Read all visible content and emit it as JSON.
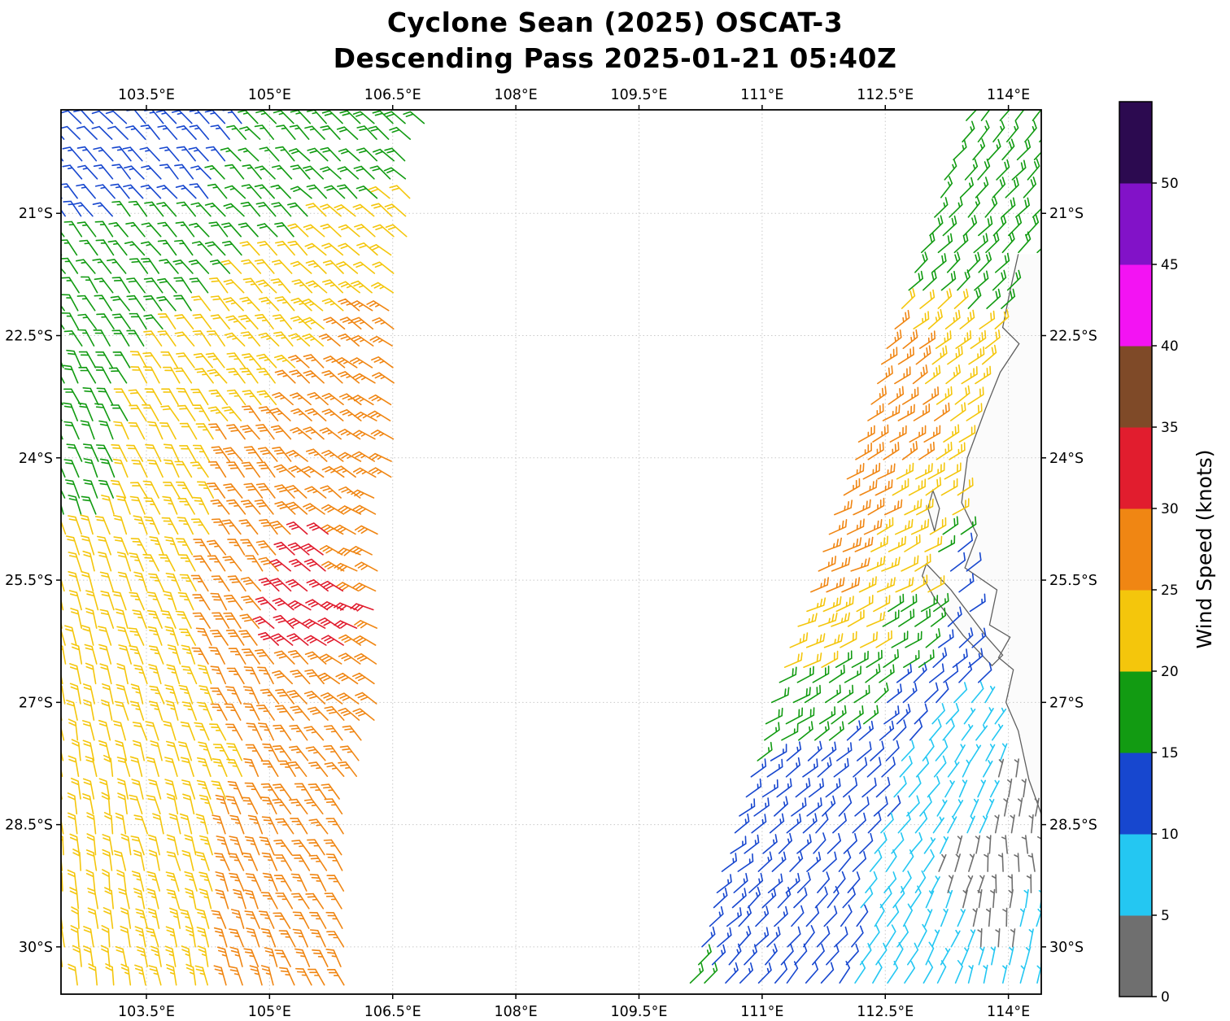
{
  "title": {
    "line1": "Cyclone Sean (2025) OSCAT-3",
    "line2": "Descending Pass 2025-01-21 05:40Z"
  },
  "chart_data": {
    "type": "wind_barb_map",
    "title": "Cyclone Sean (2025) OSCAT-3 — Descending Pass 2025-01-21 05:40Z",
    "instrument": "OSCAT-3",
    "pass_type": "Descending",
    "datetime_label": "2025-01-21 05:40Z",
    "lon_range": [
      102.46,
      114.4
    ],
    "lat_range": [
      19.73,
      30.58
    ],
    "grid": "dashed",
    "x_ticks": [
      103.5,
      105,
      106.5,
      108,
      109.5,
      111,
      112.5,
      114
    ],
    "x_tick_labels": [
      "103.5°E",
      "105°E",
      "106.5°E",
      "108°E",
      "109.5°E",
      "111°E",
      "112.5°E",
      "114°E"
    ],
    "y_ticks": [
      21,
      22.5,
      24,
      25.5,
      27,
      28.5,
      30
    ],
    "y_tick_labels": [
      "21°S",
      "22.5°S",
      "24°S",
      "25.5°S",
      "27°S",
      "28.5°S",
      "30°S"
    ],
    "colorbar": {
      "label": "Wind Speed (knots)",
      "levels": [
        0,
        5,
        10,
        15,
        20,
        25,
        30,
        35,
        40,
        45,
        50,
        55
      ],
      "tick_labels": [
        "0",
        "5",
        "10",
        "15",
        "20",
        "25",
        "30",
        "35",
        "40",
        "45",
        "50"
      ],
      "colors": [
        "#6f6f6f",
        "#24c7f2",
        "#1747cf",
        "#129b12",
        "#f4c60c",
        "#f08613",
        "#e11d2e",
        "#7f4a28",
        "#f313f3",
        "#8212c8",
        "#2c0a50"
      ]
    },
    "swaths": [
      {
        "name": "left-swath",
        "col_spacing_deg": 0.2,
        "row_spacing_deg": 0.23,
        "left_edge": [
          [
            19.8,
            102.38
          ],
          [
            30.6,
            102.38
          ]
        ],
        "right_edge": [
          [
            19.8,
            106.92
          ],
          [
            21.0,
            106.72
          ],
          [
            22.5,
            106.6
          ],
          [
            24.0,
            106.5
          ],
          [
            25.5,
            106.4
          ],
          [
            26.6,
            106.35
          ],
          [
            27.2,
            106.3
          ],
          [
            28.2,
            106.05
          ],
          [
            30.6,
            105.98
          ]
        ]
      },
      {
        "name": "right-swath",
        "col_spacing_deg": 0.2,
        "row_spacing_deg": 0.23,
        "left_edge": [
          [
            19.8,
            113.42
          ],
          [
            21.0,
            113.02
          ],
          [
            22.5,
            112.5
          ],
          [
            24.0,
            112.02
          ],
          [
            25.5,
            111.55
          ],
          [
            27.0,
            111.05
          ],
          [
            28.5,
            110.6
          ],
          [
            30.0,
            110.18
          ],
          [
            30.6,
            109.98
          ]
        ],
        "right_edge": [
          [
            19.8,
            114.5
          ],
          [
            21.4,
            114.5
          ],
          [
            21.9,
            114.05
          ],
          [
            23.0,
            113.75
          ],
          [
            23.8,
            113.55
          ],
          [
            24.6,
            113.35
          ],
          [
            25.2,
            113.55
          ],
          [
            26.4,
            113.65
          ],
          [
            27.0,
            113.8
          ],
          [
            27.6,
            114.1
          ],
          [
            28.4,
            114.4
          ],
          [
            28.8,
            114.5
          ],
          [
            30.6,
            114.5
          ]
        ]
      }
    ],
    "wind_samples_format": [
      "lon_deg_e",
      "lat_deg_s",
      "speed_knots",
      "staff_screen_angle_deg"
    ],
    "wind_samples": [
      [
        103.0,
        19.85,
        12,
        133
      ],
      [
        104.2,
        19.85,
        13,
        133
      ],
      [
        105.2,
        19.9,
        16,
        133
      ],
      [
        106.3,
        19.95,
        18,
        135
      ],
      [
        102.7,
        20.6,
        13,
        130
      ],
      [
        103.9,
        20.6,
        13,
        131
      ],
      [
        104.9,
        20.6,
        16,
        133
      ],
      [
        105.9,
        20.6,
        19,
        136
      ],
      [
        106.7,
        20.7,
        20,
        139
      ],
      [
        102.7,
        21.4,
        16,
        127
      ],
      [
        103.9,
        21.4,
        17,
        129
      ],
      [
        105.0,
        21.4,
        20,
        133
      ],
      [
        106.0,
        21.4,
        22,
        138
      ],
      [
        106.6,
        21.5,
        22,
        142
      ],
      [
        102.7,
        22.3,
        17,
        122
      ],
      [
        103.9,
        22.3,
        20,
        126
      ],
      [
        104.9,
        22.3,
        23,
        131
      ],
      [
        105.8,
        22.3,
        25,
        138
      ],
      [
        106.5,
        22.4,
        26,
        145
      ],
      [
        102.7,
        23.2,
        18,
        117
      ],
      [
        103.8,
        23.2,
        21,
        122
      ],
      [
        104.8,
        23.2,
        24,
        129
      ],
      [
        105.7,
        23.3,
        26,
        139
      ],
      [
        106.4,
        23.3,
        27,
        149
      ],
      [
        102.7,
        24.1,
        18,
        112
      ],
      [
        103.8,
        24.1,
        22,
        118
      ],
      [
        104.95,
        24.0,
        30,
        128
      ],
      [
        105.7,
        24.2,
        27,
        141
      ],
      [
        106.35,
        24.1,
        27,
        152
      ],
      [
        102.7,
        25.0,
        20,
        108
      ],
      [
        103.8,
        25.1,
        23,
        114
      ],
      [
        104.7,
        25.2,
        27,
        124
      ],
      [
        105.5,
        25.3,
        31,
        140
      ],
      [
        106.2,
        25.2,
        29,
        155
      ],
      [
        102.7,
        26.0,
        21,
        104
      ],
      [
        103.8,
        26.0,
        23,
        111
      ],
      [
        104.6,
        26.1,
        28,
        121
      ],
      [
        105.15,
        26.1,
        32,
        138
      ],
      [
        105.7,
        26.1,
        32,
        150
      ],
      [
        106.25,
        25.9,
        30,
        158
      ],
      [
        102.7,
        26.9,
        21,
        101
      ],
      [
        103.9,
        26.9,
        23,
        109
      ],
      [
        104.8,
        26.9,
        26,
        119
      ],
      [
        105.5,
        26.8,
        29,
        133
      ],
      [
        106.1,
        26.7,
        28,
        146
      ],
      [
        102.7,
        27.8,
        21,
        99
      ],
      [
        103.9,
        27.8,
        22,
        107
      ],
      [
        104.8,
        27.8,
        25,
        116
      ],
      [
        105.6,
        27.7,
        27,
        128
      ],
      [
        102.7,
        28.7,
        21,
        97
      ],
      [
        103.9,
        28.7,
        22,
        105
      ],
      [
        104.8,
        28.7,
        26,
        113
      ],
      [
        105.5,
        28.6,
        27,
        124
      ],
      [
        102.7,
        29.6,
        21,
        96
      ],
      [
        103.9,
        29.7,
        23,
        103
      ],
      [
        104.8,
        29.7,
        26,
        110
      ],
      [
        105.4,
        29.6,
        27,
        120
      ],
      [
        102.7,
        30.45,
        22,
        95
      ],
      [
        103.9,
        30.45,
        23,
        101
      ],
      [
        104.8,
        30.45,
        26,
        108
      ],
      [
        105.5,
        30.45,
        27,
        117
      ],
      [
        113.6,
        19.9,
        17,
        50
      ],
      [
        114.3,
        19.9,
        17,
        48
      ],
      [
        113.2,
        20.8,
        17,
        48
      ],
      [
        114.05,
        20.8,
        18,
        46
      ],
      [
        112.9,
        21.8,
        19,
        43
      ],
      [
        113.7,
        21.8,
        19,
        44
      ],
      [
        114.3,
        21.6,
        20,
        45
      ],
      [
        112.6,
        22.7,
        26,
        36
      ],
      [
        113.2,
        22.8,
        25,
        36
      ],
      [
        113.8,
        22.8,
        22,
        38
      ],
      [
        112.3,
        23.6,
        27,
        31
      ],
      [
        112.9,
        23.7,
        26,
        33
      ],
      [
        113.45,
        23.6,
        22,
        35
      ],
      [
        112.1,
        24.5,
        27,
        26
      ],
      [
        112.7,
        24.6,
        25,
        29
      ],
      [
        113.2,
        24.6,
        21,
        31
      ],
      [
        111.8,
        25.3,
        27,
        21
      ],
      [
        112.4,
        25.4,
        24,
        25
      ],
      [
        112.9,
        25.4,
        21,
        28
      ],
      [
        113.45,
        25.35,
        12,
        35
      ],
      [
        111.6,
        26.2,
        25,
        21
      ],
      [
        112.2,
        26.2,
        21,
        26
      ],
      [
        112.75,
        26.1,
        18,
        31
      ],
      [
        113.35,
        26.3,
        13,
        40
      ],
      [
        111.2,
        27.0,
        20,
        26
      ],
      [
        111.8,
        27.0,
        17,
        33
      ],
      [
        112.4,
        27.0,
        15,
        39
      ],
      [
        113.0,
        27.2,
        10,
        46
      ],
      [
        113.6,
        27.3,
        7,
        56
      ],
      [
        110.9,
        27.9,
        15,
        33
      ],
      [
        111.6,
        27.9,
        13,
        39
      ],
      [
        112.3,
        28.0,
        12,
        43
      ],
      [
        112.9,
        28.1,
        8,
        51
      ],
      [
        113.55,
        28.2,
        6,
        62
      ],
      [
        114.15,
        28.1,
        3,
        82
      ],
      [
        110.6,
        28.8,
        14,
        37
      ],
      [
        111.3,
        28.9,
        13,
        43
      ],
      [
        112.0,
        29.0,
        11,
        47
      ],
      [
        112.7,
        29.1,
        8,
        53
      ],
      [
        113.4,
        29.2,
        4,
        72
      ],
      [
        114.05,
        29.1,
        3,
        96
      ],
      [
        110.3,
        29.7,
        15,
        41
      ],
      [
        111.0,
        29.8,
        13,
        45
      ],
      [
        111.8,
        29.9,
        11,
        49
      ],
      [
        112.5,
        30.0,
        9,
        56
      ],
      [
        113.2,
        30.0,
        7,
        66
      ],
      [
        113.9,
        29.9,
        4,
        86
      ],
      [
        114.35,
        29.8,
        6,
        76
      ],
      [
        110.05,
        30.45,
        16,
        43
      ],
      [
        110.8,
        30.45,
        13,
        47
      ],
      [
        111.6,
        30.45,
        11,
        51
      ],
      [
        112.4,
        30.45,
        9,
        59
      ],
      [
        113.1,
        30.45,
        8,
        63
      ],
      [
        113.85,
        30.45,
        6,
        76
      ]
    ],
    "coastline": {
      "mainland": [
        [
          114.12,
          21.5
        ],
        [
          114.02,
          21.95
        ],
        [
          113.93,
          22.4
        ],
        [
          114.13,
          22.6
        ],
        [
          113.9,
          22.95
        ],
        [
          113.72,
          23.4
        ],
        [
          113.5,
          24.0
        ],
        [
          113.43,
          24.55
        ],
        [
          113.62,
          24.95
        ],
        [
          113.47,
          25.35
        ],
        [
          113.86,
          25.62
        ],
        [
          113.77,
          26.05
        ],
        [
          114.02,
          26.2
        ],
        [
          113.88,
          26.45
        ],
        [
          114.06,
          26.6
        ],
        [
          113.97,
          27.0
        ],
        [
          114.12,
          27.35
        ],
        [
          114.25,
          27.95
        ],
        [
          114.5,
          28.65
        ],
        [
          114.58,
          29.4
        ],
        [
          114.63,
          30.65
        ]
      ],
      "islands": [
        [
          [
            113.0,
            25.3
          ],
          [
            113.3,
            25.62
          ],
          [
            113.72,
            26.18
          ],
          [
            113.93,
            26.42
          ],
          [
            113.8,
            26.55
          ],
          [
            113.45,
            26.18
          ],
          [
            113.1,
            25.72
          ],
          [
            112.95,
            25.45
          ]
        ],
        [
          [
            113.08,
            24.4
          ],
          [
            113.16,
            24.62
          ],
          [
            113.1,
            24.9
          ],
          [
            113.02,
            24.62
          ]
        ]
      ]
    }
  }
}
